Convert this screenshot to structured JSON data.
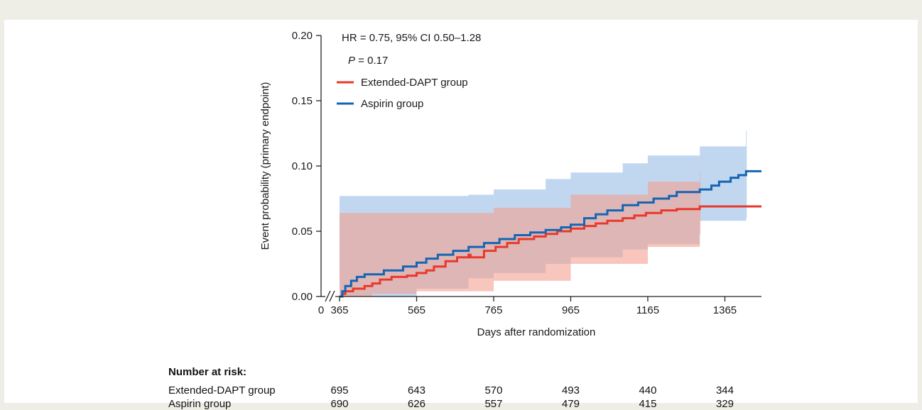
{
  "chart_data": {
    "type": "line",
    "chart_subtype": "kaplan-meier cumulative incidence",
    "ylabel": "Event probability (primary endpoint)",
    "xlabel": "Days after randomization",
    "ylim": [
      0,
      0.2
    ],
    "yticks": [
      "0.00",
      "0.05",
      "0.10",
      "0.15",
      "0.20"
    ],
    "ytick_values": [
      0,
      0.05,
      0.1,
      0.15,
      0.2
    ],
    "xticks": [
      "365",
      "565",
      "765",
      "965",
      "1165",
      "1365"
    ],
    "xtick_values": [
      365,
      565,
      765,
      965,
      1165,
      1365
    ],
    "xorigin_label": "0",
    "axis_break": true,
    "xlim": [
      365,
      1460
    ],
    "grid": false,
    "legend_position": "top-left",
    "annotations": {
      "hr": "HR = 0.75, 95% CI 0.50–1.28",
      "p_symbol": "P",
      "p_value": " = 0.17"
    },
    "series": [
      {
        "name": "Extended-DAPT group",
        "color": "#e8392b",
        "band_color": "#f4a08f",
        "x": [
          365,
          372,
          380,
          400,
          430,
          450,
          470,
          500,
          540,
          565,
          590,
          610,
          640,
          670,
          700,
          705,
          740,
          770,
          800,
          830,
          870,
          900,
          930,
          965,
          1000,
          1030,
          1060,
          1100,
          1130,
          1160,
          1200,
          1240,
          1300,
          1460
        ],
        "y": [
          0.0,
          0.002,
          0.004,
          0.006,
          0.008,
          0.01,
          0.013,
          0.015,
          0.016,
          0.018,
          0.02,
          0.023,
          0.027,
          0.03,
          0.032,
          0.03,
          0.035,
          0.038,
          0.041,
          0.044,
          0.046,
          0.048,
          0.05,
          0.052,
          0.054,
          0.056,
          0.058,
          0.06,
          0.062,
          0.064,
          0.066,
          0.067,
          0.069,
          0.069
        ],
        "ci_x": [
          365,
          450,
          565,
          765,
          965,
          1165,
          1300
        ],
        "ci_lower": [
          0.0,
          0.002,
          0.004,
          0.012,
          0.025,
          0.038,
          0.048
        ],
        "ci_upper": [
          0.064,
          0.064,
          0.064,
          0.068,
          0.078,
          0.088,
          0.095
        ]
      },
      {
        "name": "Aspirin group",
        "color": "#1565b3",
        "band_color": "#9fc1e8",
        "x": [
          365,
          372,
          380,
          395,
          410,
          430,
          480,
          530,
          565,
          590,
          620,
          660,
          700,
          740,
          780,
          820,
          860,
          900,
          940,
          965,
          1000,
          1030,
          1060,
          1100,
          1140,
          1180,
          1220,
          1240,
          1300,
          1330,
          1350,
          1380,
          1400,
          1420,
          1460
        ],
        "y": [
          0.0,
          0.004,
          0.008,
          0.012,
          0.015,
          0.017,
          0.02,
          0.023,
          0.026,
          0.029,
          0.032,
          0.035,
          0.038,
          0.041,
          0.044,
          0.047,
          0.049,
          0.051,
          0.053,
          0.055,
          0.06,
          0.063,
          0.066,
          0.07,
          0.072,
          0.075,
          0.077,
          0.08,
          0.082,
          0.085,
          0.088,
          0.091,
          0.093,
          0.096,
          0.096
        ],
        "ci_x": [
          365,
          565,
          700,
          765,
          900,
          965,
          1100,
          1165,
          1300,
          1420
        ],
        "ci_lower": [
          0.0,
          0.006,
          0.014,
          0.018,
          0.025,
          0.03,
          0.036,
          0.04,
          0.058,
          0.06
        ],
        "ci_upper": [
          0.077,
          0.077,
          0.078,
          0.082,
          0.09,
          0.095,
          0.102,
          0.108,
          0.115,
          0.127
        ]
      }
    ]
  },
  "risk_table": {
    "title": "Number at risk:",
    "rows": [
      {
        "name": "Extended-DAPT group",
        "values": [
          "695",
          "643",
          "570",
          "493",
          "440",
          "344"
        ]
      },
      {
        "name": "Aspirin group",
        "values": [
          "690",
          "626",
          "557",
          "479",
          "415",
          "329"
        ]
      }
    ]
  }
}
